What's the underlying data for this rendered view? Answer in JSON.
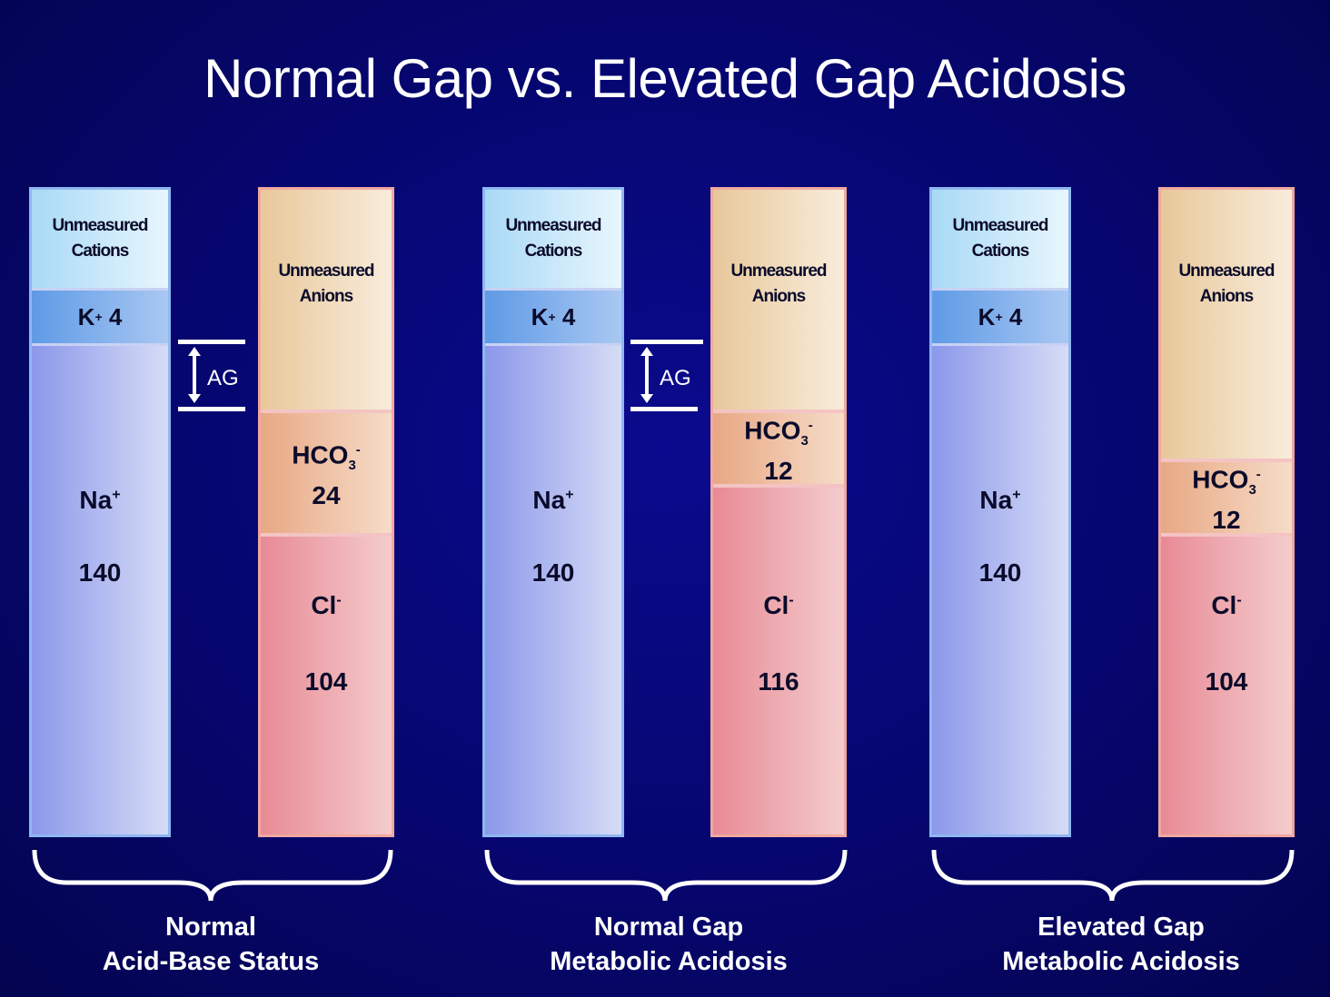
{
  "title": "Normal Gap vs. Elevated Gap Acidosis",
  "gap_label": "AG",
  "panels": [
    {
      "cations": {
        "unmeasured_line1": "Unmeasured",
        "unmeasured_line2": "Cations",
        "k": "K",
        "k_sup": "+",
        "k_value": "4",
        "na": "Na",
        "na_sup": "+",
        "na_value": "140"
      },
      "anions": {
        "unmeasured_line1": "Unmeasured",
        "unmeasured_line2": "Anions",
        "hco3": "HCO",
        "hco3_sub": "3",
        "hco3_sup": "-",
        "hco3_value": "24",
        "cl": "Cl",
        "cl_sup": "-",
        "cl_value": "104"
      },
      "label_line1": "Normal",
      "label_line2": "Acid-Base Status"
    },
    {
      "cations": {
        "unmeasured_line1": "Unmeasured",
        "unmeasured_line2": "Cations",
        "k": "K",
        "k_sup": "+",
        "k_value": "4",
        "na": "Na",
        "na_sup": "+",
        "na_value": "140"
      },
      "anions": {
        "unmeasured_line1": "Unmeasured",
        "unmeasured_line2": "Anions",
        "hco3": "HCO",
        "hco3_sub": "3",
        "hco3_sup": "-",
        "hco3_value": "12",
        "cl": "Cl",
        "cl_sup": "-",
        "cl_value": "116"
      },
      "label_line1": "Normal Gap",
      "label_line2": "Metabolic Acidosis"
    },
    {
      "cations": {
        "unmeasured_line1": "Unmeasured",
        "unmeasured_line2": "Cations",
        "k": "K",
        "k_sup": "+",
        "k_value": "4",
        "na": "Na",
        "na_sup": "+",
        "na_value": "140"
      },
      "anions": {
        "unmeasured_line1": "Unmeasured",
        "unmeasured_line2": "Anions",
        "hco3": "HCO",
        "hco3_sub": "3",
        "hco3_sup": "-",
        "hco3_value": "12",
        "cl": "Cl",
        "cl_sup": "-",
        "cl_value": "104"
      },
      "label_line1": "Elevated Gap",
      "label_line2": "Metabolic Acidosis"
    }
  ]
}
